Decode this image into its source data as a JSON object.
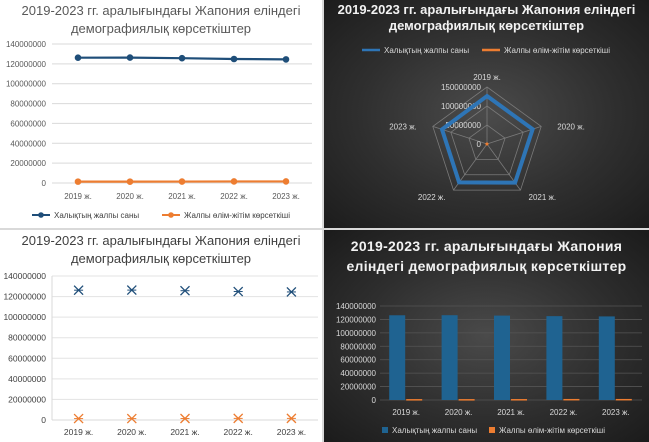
{
  "chart_data": [
    {
      "type": "line",
      "title": "2019-2023 гг. аралығындағы Жапония еліндегі демографиялық көрсеткіштер",
      "categories": [
        "2019 ж.",
        "2020 ж.",
        "2021 ж.",
        "2022 ж.",
        "2023 ж."
      ],
      "series": [
        {
          "name": "Халықтың жалпы саны",
          "values": [
            126200000,
            126300000,
            125700000,
            124900000,
            124500000
          ],
          "color": "#1f4e79"
        },
        {
          "name": "Жалпы өлім-жітім көрсеткіші",
          "values": [
            1380000,
            1370000,
            1440000,
            1570000,
            1580000
          ],
          "color": "#ed7d31"
        }
      ],
      "yticks": [
        "0",
        "20000000",
        "40000000",
        "60000000",
        "80000000",
        "100000000",
        "120000000",
        "140000000"
      ],
      "ylim": [
        0,
        140000000
      ],
      "legend": "bottom",
      "grid": true,
      "markers": "circle"
    },
    {
      "type": "radar",
      "title": "2019-2023 гг. аралығындағы Жапония еліндегі демографиялық көрсеткіштер",
      "categories": [
        "2019 ж.",
        "2020 ж.",
        "2021 ж.",
        "2022 ж.",
        "2023 ж."
      ],
      "series": [
        {
          "name": "Халықтың жалпы саны",
          "values": [
            126200000,
            126300000,
            125700000,
            124900000,
            124500000
          ],
          "color": "#2e75b6"
        },
        {
          "name": "Жалпы өлім-жітім көрсеткіші",
          "values": [
            1380000,
            1370000,
            1440000,
            1570000,
            1580000
          ],
          "color": "#ed7d31"
        }
      ],
      "rticks": [
        "0",
        "50000000",
        "100000000",
        "150000000"
      ],
      "rlim": [
        0,
        150000000
      ],
      "legend": "top"
    },
    {
      "type": "scatter",
      "title": "2019-2023 гг. аралығындағы Жапония еліндегі демографиялық көрсеткіштер",
      "categories": [
        "2019 ж.",
        "2020 ж.",
        "2021 ж.",
        "2022 ж.",
        "2023 ж."
      ],
      "series": [
        {
          "name": "Халықтың жалпы саны",
          "values": [
            126200000,
            126300000,
            125700000,
            124900000,
            124500000
          ],
          "color": "#1f4e79"
        },
        {
          "name": "Жалпы өлім-жітім көрсеткіші",
          "values": [
            1380000,
            1370000,
            1440000,
            1570000,
            1580000
          ],
          "color": "#ed7d31"
        }
      ],
      "yticks": [
        "0",
        "20000000",
        "40000000",
        "60000000",
        "80000000",
        "100000000",
        "120000000",
        "140000000"
      ],
      "ylim": [
        0,
        140000000
      ],
      "grid": true,
      "markers": "x"
    },
    {
      "type": "bar",
      "title": "2019-2023 гг. аралығындағы Жапония еліндегі демографиялық көрсеткіштер",
      "categories": [
        "2019 ж.",
        "2020 ж.",
        "2021 ж.",
        "2022 ж.",
        "2023 ж."
      ],
      "series": [
        {
          "name": "Халықтың жалпы саны",
          "values": [
            126200000,
            126300000,
            125700000,
            124900000,
            124500000
          ],
          "color": "#1f6391"
        },
        {
          "name": "Жалпы өлім-жітім көрсеткіші",
          "values": [
            1380000,
            1370000,
            1440000,
            1570000,
            1580000
          ],
          "color": "#ed7d31"
        }
      ],
      "yticks": [
        "0",
        "20000000",
        "40000000",
        "60000000",
        "80000000",
        "100000000",
        "120000000",
        "140000000"
      ],
      "ylim": [
        0,
        140000000
      ],
      "legend": "bottom",
      "grid": true
    }
  ]
}
